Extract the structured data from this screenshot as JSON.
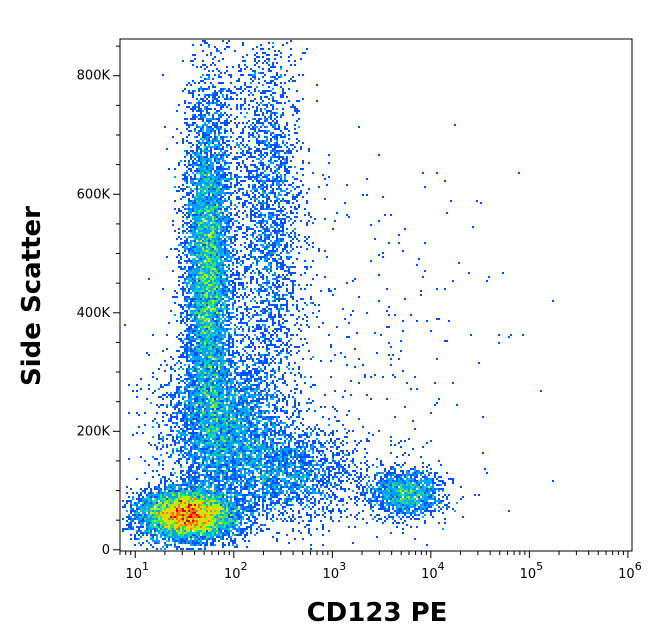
{
  "chart_data": {
    "type": "scatter",
    "subtype": "flow-cytometry-density-dot-plot",
    "xlabel": "CD123 PE",
    "ylabel": "Side Scatter",
    "x_scale": "log",
    "y_scale": "linear",
    "xlim": [
      7,
      1100000
    ],
    "ylim": [
      -2000,
      862000
    ],
    "grid": false,
    "x_ticks": [
      {
        "value": 10,
        "base": "10",
        "exp": "1"
      },
      {
        "value": 100,
        "base": "10",
        "exp": "2"
      },
      {
        "value": 1000,
        "base": "10",
        "exp": "3"
      },
      {
        "value": 10000,
        "base": "10",
        "exp": "4"
      },
      {
        "value": 100000,
        "base": "10",
        "exp": "5"
      },
      {
        "value": 1000000,
        "base": "10",
        "exp": "6"
      }
    ],
    "y_ticks": [
      {
        "value": 0,
        "label": "0"
      },
      {
        "value": 200000,
        "label": "200K"
      },
      {
        "value": 400000,
        "label": "400K"
      },
      {
        "value": 600000,
        "label": "600K"
      },
      {
        "value": 800000,
        "label": "800K"
      }
    ],
    "color_scale": [
      "#1010c8",
      "#0050ff",
      "#00a0ff",
      "#00d0c0",
      "#40e070",
      "#b0f000",
      "#ffd000",
      "#ff7000",
      "#e00000"
    ],
    "populations": [
      {
        "x_center": 35,
        "y_center": 60000,
        "x_spread_decades": 0.25,
        "y_spread": 22000,
        "weight": 0.28,
        "peak_density": 1.0
      },
      {
        "x_center": 55,
        "y_center": 470000,
        "x_spread_decades": 0.12,
        "y_spread": 150000,
        "weight": 0.3,
        "peak_density": 0.55
      },
      {
        "x_center": 80,
        "y_center": 210000,
        "x_spread_decades": 0.3,
        "y_spread": 60000,
        "weight": 0.16,
        "peak_density": 0.35
      },
      {
        "x_center": 220,
        "y_center": 560000,
        "x_spread_decades": 0.18,
        "y_spread": 170000,
        "weight": 0.1,
        "peak_density": 0.25
      },
      {
        "x_center": 350,
        "y_center": 130000,
        "x_spread_decades": 0.35,
        "y_spread": 40000,
        "weight": 0.08,
        "peak_density": 0.2
      },
      {
        "x_center": 5500,
        "y_center": 95000,
        "x_spread_decades": 0.2,
        "y_spread": 20000,
        "weight": 0.06,
        "peak_density": 0.3
      },
      {
        "x_center": 1000,
        "y_center": 300000,
        "x_spread_decades": 0.8,
        "y_spread": 200000,
        "weight": 0.02,
        "peak_density": 0.05
      }
    ]
  }
}
